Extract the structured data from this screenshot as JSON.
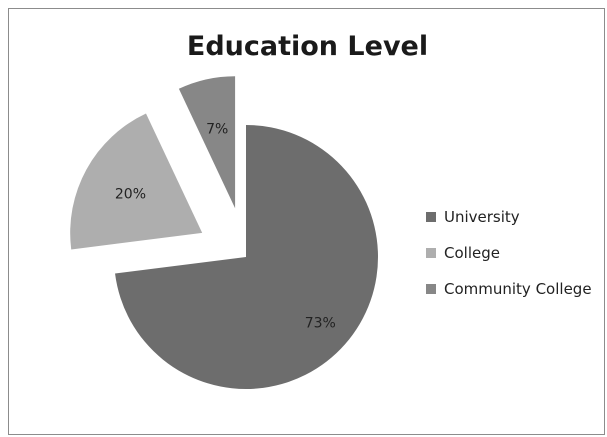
{
  "chart_data": {
    "type": "pie",
    "title": "Education Level",
    "categories": [
      "University",
      "College",
      "Community College"
    ],
    "values": [
      73,
      20,
      7
    ],
    "value_labels": [
      "73%",
      "20%",
      "7%"
    ],
    "colors": [
      "#6d6d6d",
      "#aeaeae",
      "#878787"
    ],
    "exploded": [
      false,
      true,
      true
    ],
    "legend_position": "right"
  }
}
